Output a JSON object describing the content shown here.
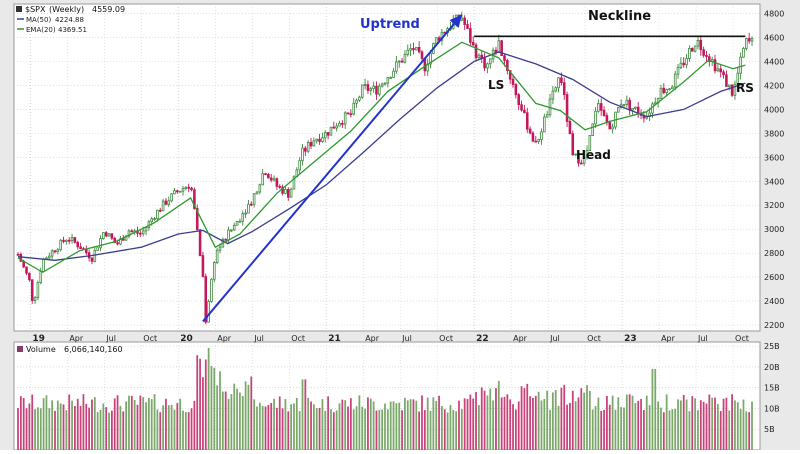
{
  "legend": {
    "symbol": "$SPX",
    "period": "(Weekly)",
    "last": "4559.09",
    "ma_label": "MA(50)",
    "ma_value": "4224.88",
    "ema_label": "EMA(20)",
    "ema_value": "4369.51",
    "volume_label": "Volume",
    "volume_value": "6,066,140,160"
  },
  "annotations": {
    "uptrend": "Uptrend",
    "neckline": "Neckline",
    "left_shoulder": "LS",
    "head": "Head",
    "right_shoulder": "RS"
  },
  "colors": {
    "up": "#3d8a3d",
    "down": "#c2185b",
    "vol_up": "#7aa86a",
    "vol_down": "#c8427a",
    "ma50": "#3a3d8f",
    "ema20": "#2e9a2e",
    "trend": "#2233cc",
    "grid": "#c8c8c8",
    "panel_bg": "#ffffff",
    "frame": "#e6e6e6"
  },
  "chart_data": {
    "type": "line",
    "x_tick_labels": [
      "19",
      "Apr",
      "Jul",
      "Oct",
      "20",
      "Apr",
      "Jul",
      "Oct",
      "21",
      "Apr",
      "Jul",
      "Oct",
      "22",
      "Apr",
      "Jul",
      "Oct",
      "23",
      "Apr",
      "Jul",
      "Oct"
    ],
    "year_ticks": [
      "19",
      "20",
      "21",
      "22",
      "23"
    ],
    "x_tick_dates": [
      "2019-01",
      "2019-04",
      "2019-07",
      "2019-10",
      "2020-01",
      "2020-04",
      "2020-07",
      "2020-10",
      "2021-01",
      "2021-04",
      "2021-07",
      "2021-10",
      "2022-01",
      "2022-04",
      "2022-07",
      "2022-10",
      "2023-01",
      "2023-04",
      "2023-07",
      "2023-10"
    ],
    "price_axis": {
      "ticks": [
        2200,
        2400,
        2600,
        2800,
        3000,
        3200,
        3400,
        3600,
        3800,
        4000,
        4200,
        4400,
        4600,
        4800
      ],
      "ylim": [
        2150,
        4880
      ]
    },
    "volume_axis": {
      "ticks": [
        "25B",
        "20B",
        "15B",
        "10B",
        "5B"
      ],
      "tick_values": [
        25,
        20,
        15,
        10,
        5
      ],
      "ylim": [
        0,
        26
      ]
    },
    "price_path": [
      [
        "2018-12",
        2790
      ],
      [
        "2019-01",
        2550
      ],
      [
        "2019-01",
        2370
      ],
      [
        "2019-02",
        2740
      ],
      [
        "2019-04",
        2930
      ],
      [
        "2019-05",
        2860
      ],
      [
        "2019-06",
        2760
      ],
      [
        "2019-07",
        2990
      ],
      [
        "2019-08",
        2870
      ],
      [
        "2019-09",
        2990
      ],
      [
        "2019-10",
        2960
      ],
      [
        "2019-11",
        3110
      ],
      [
        "2019-12",
        3230
      ],
      [
        "2020-01",
        3320
      ],
      [
        "2020-02",
        3380
      ],
      [
        "2020-02",
        3230
      ],
      [
        "2020-03",
        2600
      ],
      [
        "2020-03",
        2230
      ],
      [
        "2020-04",
        2800
      ],
      [
        "2020-05",
        2950
      ],
      [
        "2020-06",
        3100
      ],
      [
        "2020-07",
        3250
      ],
      [
        "2020-08",
        3500
      ],
      [
        "2020-09",
        3360
      ],
      [
        "2020-10",
        3290
      ],
      [
        "2020-11",
        3630
      ],
      [
        "2020-12",
        3750
      ],
      [
        "2021-01",
        3800
      ],
      [
        "2021-02",
        3900
      ],
      [
        "2021-03",
        3960
      ],
      [
        "2021-04",
        4180
      ],
      [
        "2021-05",
        4160
      ],
      [
        "2021-06",
        4280
      ],
      [
        "2021-07",
        4400
      ],
      [
        "2021-08",
        4520
      ],
      [
        "2021-09",
        4360
      ],
      [
        "2021-10",
        4600
      ],
      [
        "2021-11",
        4700
      ],
      [
        "2021-12",
        4770
      ],
      [
        "2022-01",
        4500
      ],
      [
        "2022-02",
        4360
      ],
      [
        "2022-03",
        4550
      ],
      [
        "2022-04",
        4250
      ],
      [
        "2022-05",
        3950
      ],
      [
        "2022-06",
        3700
      ],
      [
        "2022-07",
        4000
      ],
      [
        "2022-08",
        4300
      ],
      [
        "2022-09",
        3600
      ],
      [
        "2022-10",
        3580
      ],
      [
        "2022-11",
        4030
      ],
      [
        "2022-12",
        3840
      ],
      [
        "2023-01",
        4080
      ],
      [
        "2023-02",
        4000
      ],
      [
        "2023-03",
        3950
      ],
      [
        "2023-04",
        4150
      ],
      [
        "2023-05",
        4200
      ],
      [
        "2023-06",
        4400
      ],
      [
        "2023-07",
        4580
      ],
      [
        "2023-08",
        4450
      ],
      [
        "2023-09",
        4300
      ],
      [
        "2023-10",
        4130
      ],
      [
        "2023-11",
        4560
      ]
    ],
    "ma50_path": [
      [
        "2018-12",
        2770
      ],
      [
        "2019-03",
        2740
      ],
      [
        "2019-06",
        2780
      ],
      [
        "2019-10",
        2850
      ],
      [
        "2020-01",
        2960
      ],
      [
        "2020-03",
        2990
      ],
      [
        "2020-05",
        2880
      ],
      [
        "2020-07",
        2980
      ],
      [
        "2020-10",
        3170
      ],
      [
        "2021-01",
        3370
      ],
      [
        "2021-04",
        3640
      ],
      [
        "2021-07",
        3920
      ],
      [
        "2021-10",
        4180
      ],
      [
        "2022-01",
        4400
      ],
      [
        "2022-03",
        4480
      ],
      [
        "2022-06",
        4380
      ],
      [
        "2022-09",
        4250
      ],
      [
        "2022-12",
        4060
      ],
      [
        "2023-03",
        3940
      ],
      [
        "2023-06",
        4000
      ],
      [
        "2023-09",
        4150
      ],
      [
        "2023-11",
        4220
      ]
    ],
    "ema20_path": [
      [
        "2018-12",
        2760
      ],
      [
        "2019-02",
        2640
      ],
      [
        "2019-05",
        2820
      ],
      [
        "2019-08",
        2900
      ],
      [
        "2019-11",
        3050
      ],
      [
        "2020-02",
        3260
      ],
      [
        "2020-04",
        2850
      ],
      [
        "2020-06",
        2960
      ],
      [
        "2020-09",
        3300
      ],
      [
        "2020-12",
        3560
      ],
      [
        "2021-03",
        3820
      ],
      [
        "2021-06",
        4150
      ],
      [
        "2021-09",
        4360
      ],
      [
        "2021-12",
        4560
      ],
      [
        "2022-03",
        4430
      ],
      [
        "2022-06",
        4050
      ],
      [
        "2022-08",
        3990
      ],
      [
        "2022-10",
        3830
      ],
      [
        "2022-12",
        3900
      ],
      [
        "2023-03",
        3980
      ],
      [
        "2023-06",
        4230
      ],
      [
        "2023-08",
        4410
      ],
      [
        "2023-10",
        4340
      ],
      [
        "2023-11",
        4370
      ]
    ],
    "uptrend_line": [
      [
        "2020-03",
        2230
      ],
      [
        "2021-12",
        4790
      ]
    ],
    "neckline": [
      [
        "2022-01",
        4610
      ],
      [
        "2023-11",
        4610
      ]
    ]
  }
}
